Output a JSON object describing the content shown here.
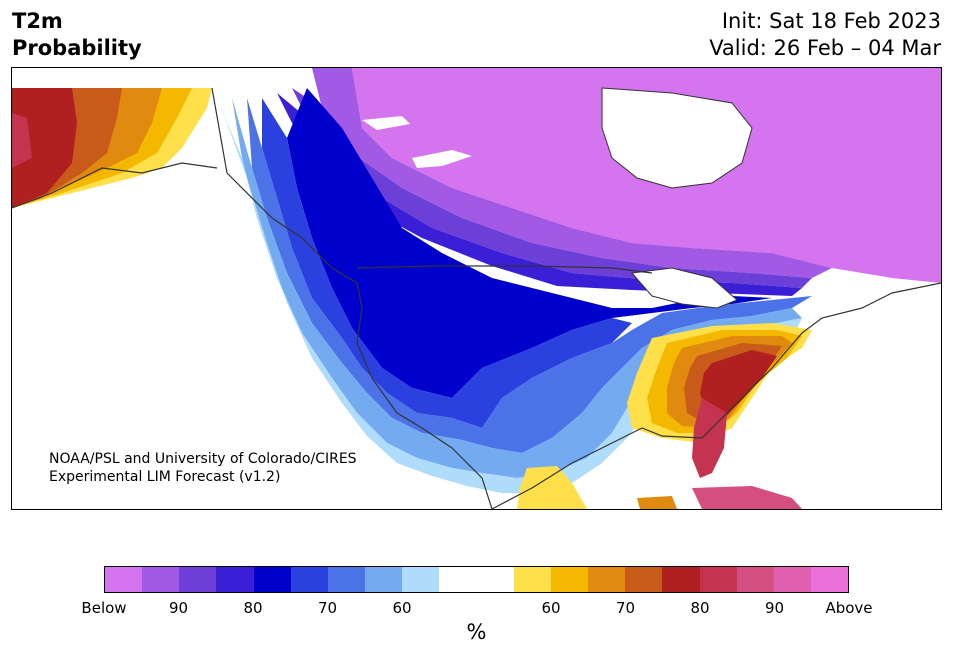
{
  "title": {
    "line1": "T2m",
    "line2": "Probability"
  },
  "dates": {
    "init": "Init: Sat 18 Feb 2023",
    "valid": "Valid: 26 Feb – 04 Mar"
  },
  "credit": {
    "line1": "NOAA/PSL and University of Colorado/CIRES",
    "line2": "Experimental LIM Forecast (v1.2)"
  },
  "colorbar": {
    "colors": [
      "#d474ee",
      "#a259e4",
      "#6b3fd8",
      "#3a1fd6",
      "#0000cd",
      "#2a41df",
      "#4c72e8",
      "#74aaf0",
      "#aedcfa",
      "#ffffff",
      "#ffffff",
      "#ffe04a",
      "#f5b800",
      "#e08a10",
      "#c85a1a",
      "#b02020",
      "#c43350",
      "#d44e80",
      "#e060b0",
      "#e870d8"
    ],
    "tick_labels": [
      "Below",
      "90",
      "80",
      "70",
      "60",
      "60",
      "70",
      "80",
      "90",
      "Above"
    ],
    "unit": "%"
  },
  "map_colors": {
    "land": "#ffffff",
    "ocean": "#ffffff",
    "pink": "#d474ee",
    "violet": "#a259e4",
    "purple": "#6b3fd8",
    "indigo": "#3a1fd6",
    "blue": "#0000cd",
    "royal": "#2a41df",
    "cornflower": "#4c72e8",
    "sky": "#74aaf0",
    "pale": "#aedcfa",
    "yellow": "#ffe04a",
    "gold": "#f5b800",
    "amber": "#e08a10",
    "orange": "#c85a1a",
    "red": "#b02020",
    "crimson": "#c43350",
    "rose": "#d44e80",
    "magenta": "#e060b0"
  }
}
